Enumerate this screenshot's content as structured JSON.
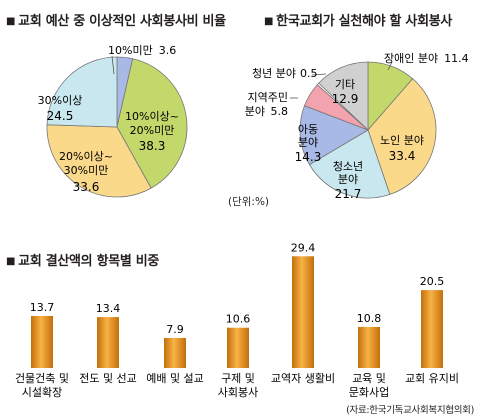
{
  "chart_data": [
    {
      "type": "pie",
      "title": "교회 예산 중 이상적인 사회봉사비 비율",
      "unit": "(단위:%)",
      "slices": [
        {
          "label": "10%미만",
          "value": 3.6,
          "color": "#a9b9e6"
        },
        {
          "label": "10%이상~20%미만",
          "value": 38.3,
          "color": "#c3d86b"
        },
        {
          "label": "20%이상~30%미만",
          "value": 33.6,
          "color": "#fbd98a"
        },
        {
          "label": "30%이상",
          "value": 24.5,
          "color": "#c9e7ee"
        }
      ]
    },
    {
      "type": "pie",
      "title": "한국교회가 실천해야 할 사회봉사",
      "unit": "(단위:%)",
      "slices": [
        {
          "label": "장애인 분야",
          "value": 11.4,
          "color": "#c3d86b"
        },
        {
          "label": "노인 분야",
          "value": 33.4,
          "color": "#fbd98a"
        },
        {
          "label": "청소년 분야",
          "value": 21.7,
          "color": "#c9e7ee"
        },
        {
          "label": "아동 분야",
          "value": 14.3,
          "color": "#a9b9e6"
        },
        {
          "label": "지역주민 분야",
          "value": 5.8,
          "color": "#f2a3ad"
        },
        {
          "label": "청년 분야",
          "value": 0.5,
          "color": "#ffffff"
        },
        {
          "label": "기타",
          "value": 12.9,
          "color": "#d0d0d0"
        }
      ]
    },
    {
      "type": "bar",
      "title": "교회 결산액의 항목별 비중",
      "categories": [
        "건물건축 및 시설확장",
        "전도 및 선교",
        "예배 및 설교",
        "구제 및 사회봉사",
        "교역자 생활비",
        "교육 및 문화사업",
        "교회 유지비"
      ],
      "category_lines": [
        [
          "건물건축 및",
          "시설확장"
        ],
        [
          "전도 및 선교"
        ],
        [
          "예배 및 설교"
        ],
        [
          "구제 및",
          "사회봉사"
        ],
        [
          "교역자 생활비"
        ],
        [
          "교육 및",
          "문화사업"
        ],
        [
          "교회 유지비"
        ]
      ],
      "values": [
        13.7,
        13.4,
        7.9,
        10.6,
        29.4,
        10.8,
        20.5
      ],
      "color": "#e8951c"
    }
  ],
  "source": "(자료:한국기독교사회복지협의회)"
}
